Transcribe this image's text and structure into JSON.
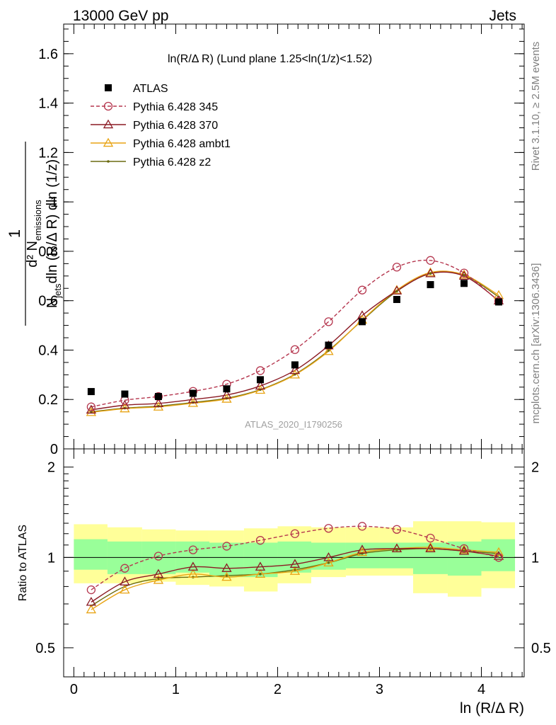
{
  "header": {
    "left": "13000 GeV pp",
    "right": "Jets"
  },
  "side_labels": {
    "rivet": "Rivet 3.1.10, ≥ 2.5M events",
    "mcplots": "mcplots.cern.ch [arXiv:1306.3436]"
  },
  "watermark": "ATLAS_2020_I1790256",
  "chart_data": [
    {
      "type": "scatter",
      "panel": "main",
      "title": "ln(R/Δ R) (Lund plane 1.25<ln(1/z)<1.52)",
      "xlabel": "ln (R/Δ R)",
      "ylabel": "1/N_jets d²N_emissions / dln(R/Δ R) dln(1/z)",
      "xlim": [
        -0.1,
        4.42
      ],
      "ylim": [
        0,
        1.72
      ],
      "x_ticks": [
        "0",
        "1",
        "2",
        "3",
        "4"
      ],
      "y_ticks": [
        "0",
        "0.2",
        "0.4",
        "0.6",
        "0.8",
        "1",
        "1.2",
        "1.4",
        "1.6"
      ],
      "x": [
        0.17,
        0.5,
        0.83,
        1.17,
        1.5,
        1.83,
        2.17,
        2.5,
        2.83,
        3.17,
        3.5,
        3.83,
        4.17
      ],
      "legend_position": "top-left",
      "series": [
        {
          "name": "ATLAS",
          "marker": "square",
          "color": "#000000",
          "line": "none",
          "values": [
            0.232,
            0.222,
            0.212,
            0.225,
            0.243,
            0.28,
            0.34,
            0.42,
            0.515,
            0.605,
            0.665,
            0.67,
            0.595
          ]
        },
        {
          "name": "Pythia 6.428 345",
          "marker": "open-circle",
          "color": "#b5364e",
          "line": "dashed",
          "values": [
            0.17,
            0.197,
            0.212,
            0.233,
            0.262,
            0.317,
            0.402,
            0.515,
            0.643,
            0.736,
            0.763,
            0.712,
            0.598
          ]
        },
        {
          "name": "Pythia 6.428 370",
          "marker": "open-triangle",
          "color": "#8b1a24",
          "line": "solid",
          "values": [
            0.158,
            0.177,
            0.184,
            0.2,
            0.218,
            0.255,
            0.318,
            0.418,
            0.54,
            0.64,
            0.71,
            0.7,
            0.6
          ]
        },
        {
          "name": "Pythia 6.428 ambt1",
          "marker": "open-triangle",
          "color": "#e8a415",
          "line": "solid",
          "values": [
            0.148,
            0.163,
            0.17,
            0.185,
            0.202,
            0.238,
            0.3,
            0.395,
            0.522,
            0.643,
            0.714,
            0.705,
            0.622
          ]
        },
        {
          "name": "Pythia 6.428 z2",
          "marker": "dot",
          "color": "#6b6b10",
          "line": "solid",
          "values": [
            0.15,
            0.165,
            0.173,
            0.188,
            0.205,
            0.24,
            0.302,
            0.398,
            0.52,
            0.638,
            0.71,
            0.703,
            0.615
          ]
        }
      ]
    },
    {
      "type": "line",
      "panel": "ratio",
      "xlabel": "ln (R/Δ R)",
      "ylabel": "Ratio to ATLAS",
      "xlim": [
        -0.1,
        4.42
      ],
      "ylim": [
        0.4,
        2.3
      ],
      "y_ticks": [
        "0.5",
        "1",
        "2"
      ],
      "reference_line": 1,
      "bins": [
        [
          0.0,
          0.33
        ],
        [
          0.33,
          0.67
        ],
        [
          0.67,
          1.0
        ],
        [
          1.0,
          1.33
        ],
        [
          1.33,
          1.67
        ],
        [
          1.67,
          2.0
        ],
        [
          2.0,
          2.33
        ],
        [
          2.33,
          2.67
        ],
        [
          2.67,
          3.0
        ],
        [
          3.0,
          3.33
        ],
        [
          3.33,
          3.67
        ],
        [
          3.67,
          4.0
        ],
        [
          4.0,
          4.33
        ]
      ],
      "uncertainty_bands": [
        {
          "name": "stat",
          "color": "#99ff99",
          "low": [
            0.91,
            0.88,
            0.88,
            0.89,
            0.86,
            0.86,
            0.89,
            0.91,
            0.92,
            0.92,
            0.88,
            0.87,
            0.9
          ],
          "high": [
            1.15,
            1.13,
            1.13,
            1.13,
            1.12,
            1.12,
            1.13,
            1.12,
            1.12,
            1.12,
            1.12,
            1.13,
            1.15
          ]
        },
        {
          "name": "total",
          "color": "#ffff99",
          "low": [
            0.82,
            0.82,
            0.83,
            0.81,
            0.8,
            0.77,
            0.82,
            0.86,
            0.87,
            0.87,
            0.76,
            0.74,
            0.79
          ],
          "high": [
            1.29,
            1.26,
            1.24,
            1.23,
            1.23,
            1.25,
            1.27,
            1.26,
            1.26,
            1.26,
            1.32,
            1.32,
            1.31
          ]
        }
      ],
      "series": [
        {
          "name": "Pythia 6.428 345",
          "color": "#b5364e",
          "line": "dashed",
          "marker": "open-circle",
          "values": [
            0.78,
            0.92,
            1.01,
            1.06,
            1.09,
            1.14,
            1.2,
            1.25,
            1.27,
            1.24,
            1.16,
            1.07,
            1.0
          ]
        },
        {
          "name": "Pythia 6.428 370",
          "color": "#8b1a24",
          "line": "solid",
          "marker": "open-triangle",
          "values": [
            0.71,
            0.83,
            0.88,
            0.93,
            0.92,
            0.93,
            0.95,
            1.0,
            1.06,
            1.07,
            1.07,
            1.05,
            1.01
          ]
        },
        {
          "name": "Pythia 6.428 ambt1",
          "color": "#e8a415",
          "line": "solid",
          "marker": "open-triangle",
          "values": [
            0.67,
            0.78,
            0.84,
            0.88,
            0.86,
            0.88,
            0.9,
            0.96,
            1.04,
            1.07,
            1.08,
            1.06,
            1.04
          ]
        },
        {
          "name": "Pythia 6.428 z2",
          "color": "#6b6b10",
          "line": "solid",
          "marker": "dot",
          "values": [
            0.69,
            0.8,
            0.85,
            0.86,
            0.87,
            0.88,
            0.91,
            0.96,
            1.03,
            1.06,
            1.07,
            1.05,
            1.03
          ]
        }
      ]
    }
  ]
}
